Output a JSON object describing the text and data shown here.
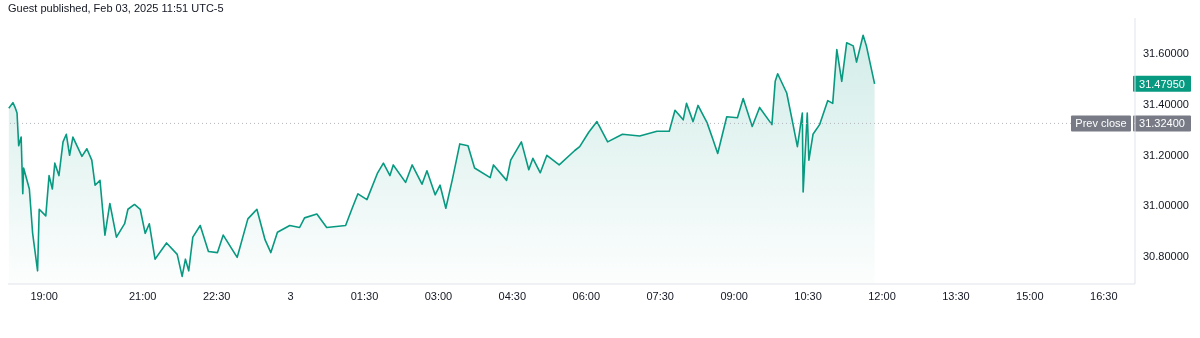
{
  "chart_data": {
    "type": "area",
    "annotations": [
      "Guest published, Feb 03, 2025 11:51 UTC-5",
      "31.47950",
      "31.32400"
    ],
    "x": [
      "2025-02-02T18:17",
      "2025-02-02T18:22",
      "2025-02-02T18:25",
      "2025-02-02T18:27",
      "2025-02-02T18:29",
      "2025-02-02T18:32",
      "2025-02-02T18:34",
      "2025-02-02T18:35",
      "2025-02-02T18:42",
      "2025-02-02T18:46",
      "2025-02-02T18:52",
      "2025-02-02T18:54",
      "2025-02-02T19:02",
      "2025-02-02T19:06",
      "2025-02-02T19:10",
      "2025-02-02T19:13",
      "2025-02-02T19:18",
      "2025-02-02T19:23",
      "2025-02-02T19:27",
      "2025-02-02T19:31",
      "2025-02-02T19:35",
      "2025-02-02T19:46",
      "2025-02-02T19:52",
      "2025-02-02T19:58",
      "2025-02-02T20:02",
      "2025-02-02T20:08",
      "2025-02-02T20:14",
      "2025-02-02T20:20",
      "2025-02-02T20:28",
      "2025-02-02T20:38",
      "2025-02-02T20:42",
      "2025-02-02T20:50",
      "2025-02-02T20:57",
      "2025-02-02T21:03",
      "2025-02-02T21:08",
      "2025-02-02T21:15",
      "2025-02-02T21:29",
      "2025-02-02T21:42",
      "2025-02-02T21:48",
      "2025-02-02T21:52",
      "2025-02-02T21:56",
      "2025-02-02T22:01",
      "2025-02-02T22:10",
      "2025-02-02T22:20",
      "2025-02-02T22:31",
      "2025-02-02T22:38",
      "2025-02-02T22:55",
      "2025-02-02T23:08",
      "2025-02-02T23:19",
      "2025-02-02T23:29",
      "2025-02-02T23:36",
      "2025-02-02T23:44",
      "2025-02-02T23:59",
      "2025-02-03T00:11",
      "2025-02-03T00:17",
      "2025-02-03T00:32",
      "2025-02-03T00:44",
      "2025-02-03T01:07",
      "2025-02-03T01:15",
      "2025-02-03T01:22",
      "2025-02-03T01:33",
      "2025-02-03T01:46",
      "2025-02-03T01:53",
      "2025-02-03T02:01",
      "2025-02-03T02:05",
      "2025-02-03T02:20",
      "2025-02-03T02:28",
      "2025-02-03T02:40",
      "2025-02-03T02:46",
      "2025-02-03T02:56",
      "2025-02-03T03:02",
      "2025-02-03T03:09",
      "2025-02-03T03:17",
      "2025-02-03T03:26",
      "2025-02-03T03:36",
      "2025-02-03T03:44",
      "2025-02-03T04:03",
      "2025-02-03T04:07",
      "2025-02-03T04:23",
      "2025-02-03T04:28",
      "2025-02-03T04:41",
      "2025-02-03T04:50",
      "2025-02-03T04:55",
      "2025-02-03T05:04",
      "2025-02-03T05:12",
      "2025-02-03T05:27",
      "2025-02-03T05:46",
      "2025-02-03T05:52",
      "2025-02-03T06:03",
      "2025-02-03T06:13",
      "2025-02-03T06:26",
      "2025-02-03T06:44",
      "2025-02-03T07:05",
      "2025-02-03T07:26",
      "2025-02-03T07:41",
      "2025-02-03T07:48",
      "2025-02-03T07:58",
      "2025-02-03T08:02",
      "2025-02-03T08:10",
      "2025-02-03T08:16",
      "2025-02-03T08:27",
      "2025-02-03T08:34",
      "2025-02-03T08:40",
      "2025-02-03T08:51",
      "2025-02-03T09:04",
      "2025-02-03T09:11",
      "2025-02-03T09:22",
      "2025-02-03T09:31",
      "2025-02-03T09:46",
      "2025-02-03T09:50",
      "2025-02-03T09:53",
      "2025-02-03T10:04",
      "2025-02-03T10:11",
      "2025-02-03T10:17",
      "2025-02-03T10:23",
      "2025-02-03T10:24",
      "2025-02-03T10:29",
      "2025-02-03T10:31",
      "2025-02-03T10:36",
      "2025-02-03T10:44",
      "2025-02-03T10:54",
      "2025-02-03T11:00",
      "2025-02-03T11:05",
      "2025-02-03T11:11",
      "2025-02-03T11:17",
      "2025-02-03T11:25",
      "2025-02-03T11:29",
      "2025-02-03T11:37",
      "2025-02-03T11:41",
      "2025-02-03T11:51"
    ],
    "series": [
      {
        "color": "#089981",
        "values": [
          31.384,
          31.406,
          31.384,
          31.365,
          31.236,
          31.27,
          31.046,
          31.148,
          31.065,
          30.89,
          30.742,
          30.985,
          30.959,
          31.118,
          31.065,
          31.167,
          31.118,
          31.251,
          31.281,
          31.198,
          31.27,
          31.194,
          31.224,
          31.179,
          31.08,
          31.099,
          30.883,
          31.008,
          30.875,
          30.928,
          30.985,
          31.004,
          30.985,
          30.89,
          30.928,
          30.788,
          30.852,
          30.807,
          30.72,
          30.788,
          30.742,
          30.875,
          30.921,
          30.818,
          30.814,
          30.883,
          30.795,
          30.947,
          30.985,
          30.864,
          30.814,
          30.894,
          30.921,
          30.913,
          30.951,
          30.966,
          30.913,
          30.921,
          30.989,
          31.046,
          31.023,
          31.129,
          31.167,
          31.118,
          31.16,
          31.091,
          31.16,
          31.084,
          31.137,
          31.042,
          31.08,
          30.989,
          31.103,
          31.243,
          31.236,
          31.148,
          31.11,
          31.16,
          31.099,
          31.179,
          31.251,
          31.141,
          31.186,
          31.129,
          31.198,
          31.16,
          31.217,
          31.232,
          31.289,
          31.331,
          31.251,
          31.281,
          31.274,
          31.293,
          31.293,
          31.376,
          31.338,
          31.403,
          31.331,
          31.395,
          31.327,
          31.262,
          31.205,
          31.35,
          31.346,
          31.422,
          31.312,
          31.387,
          31.319,
          31.49,
          31.52,
          31.444,
          31.331,
          31.232,
          31.365,
          31.053,
          31.365,
          31.179,
          31.281,
          31.319,
          31.414,
          31.403,
          31.615,
          31.49,
          31.642,
          31.63,
          31.566,
          31.672,
          31.63,
          31.48
        ]
      }
    ],
    "xlim": [
      "2025-02-02T18:16",
      "2025-02-03T17:08"
    ],
    "xticks": [
      {
        "value": "2025-02-02T19:00",
        "label": "19:00"
      },
      {
        "value": "2025-02-02T21:00",
        "label": "21:00"
      },
      {
        "value": "2025-02-02T22:30",
        "label": "22:30"
      },
      {
        "value": "2025-02-03T00:00",
        "label": "3"
      },
      {
        "value": "2025-02-03T01:30",
        "label": "01:30"
      },
      {
        "value": "2025-02-03T03:00",
        "label": "03:00"
      },
      {
        "value": "2025-02-03T04:30",
        "label": "04:30"
      },
      {
        "value": "2025-02-03T06:00",
        "label": "06:00"
      },
      {
        "value": "2025-02-03T07:30",
        "label": "07:30"
      },
      {
        "value": "2025-02-03T09:00",
        "label": "09:00"
      },
      {
        "value": "2025-02-03T10:30",
        "label": "10:30"
      },
      {
        "value": "2025-02-03T12:00",
        "label": "12:00"
      },
      {
        "value": "2025-02-03T13:30",
        "label": "13:30"
      },
      {
        "value": "2025-02-03T15:00",
        "label": "15:00"
      },
      {
        "value": "2025-02-03T16:30",
        "label": "16:30"
      }
    ],
    "ylim": [
      30.69,
      31.74
    ],
    "yticks": [
      {
        "value": 30.8,
        "label": "30.80000"
      },
      {
        "value": 31,
        "label": "31.00000"
      },
      {
        "value": 31.2,
        "label": "31.20000"
      },
      {
        "value": 31.4,
        "label": "31.40000"
      },
      {
        "value": 31.6,
        "label": "31.60000"
      }
    ],
    "ref_lines": [
      {
        "axis": "y",
        "value": 31.324,
        "label": "Prev close",
        "color": "#b2b5be",
        "line_style": "dotted"
      }
    ],
    "grid": false,
    "legend": false,
    "marker": "none",
    "line_style": "solid"
  }
}
